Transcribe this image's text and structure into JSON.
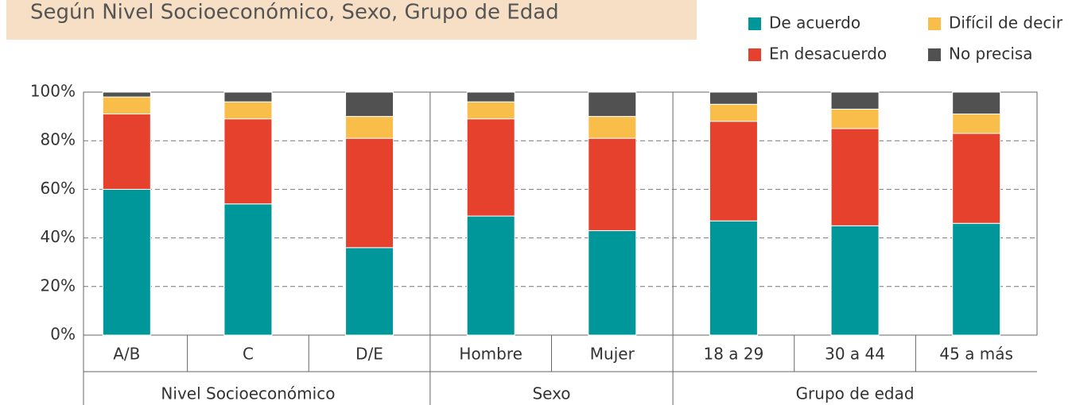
{
  "chart_data": {
    "type": "stacked_bar",
    "title": "Según Nivel Socioeconómico, Sexo, Grupo de Edad",
    "groups": [
      {
        "label": "Nivel Socioeconómico",
        "categories": [
          "A/B",
          "C",
          "D/E"
        ]
      },
      {
        "label": "Sexo",
        "categories": [
          "Hombre",
          "Mujer"
        ]
      },
      {
        "label": "Grupo de edad",
        "categories": [
          "18 a 29",
          "30 a 44",
          "45 a más"
        ]
      }
    ],
    "series": [
      {
        "name": "De acuerdo",
        "color": "#00979a",
        "values": [
          60,
          54,
          36,
          49,
          43,
          47,
          45,
          46
        ]
      },
      {
        "name": "En desacuerdo",
        "color": "#e5412d",
        "values": [
          31,
          35,
          45,
          40,
          38,
          41,
          40,
          37
        ]
      },
      {
        "name": "Difícil de decir",
        "color": "#f9bd4a",
        "values": [
          7,
          7,
          9,
          7,
          9,
          7,
          8,
          8
        ]
      },
      {
        "name": "No precisa",
        "color": "#515151",
        "values": [
          2,
          4,
          10,
          4,
          10,
          5,
          7,
          9
        ]
      }
    ],
    "ylim": [
      0,
      100
    ],
    "yticks": [
      {
        "value": 0,
        "label": "0%"
      },
      {
        "value": 20,
        "label": "20%"
      },
      {
        "value": 40,
        "label": "40%"
      },
      {
        "value": 60,
        "label": "60%"
      },
      {
        "value": 80,
        "label": "80%"
      },
      {
        "value": 100,
        "label": "100%"
      }
    ],
    "grid": true
  }
}
